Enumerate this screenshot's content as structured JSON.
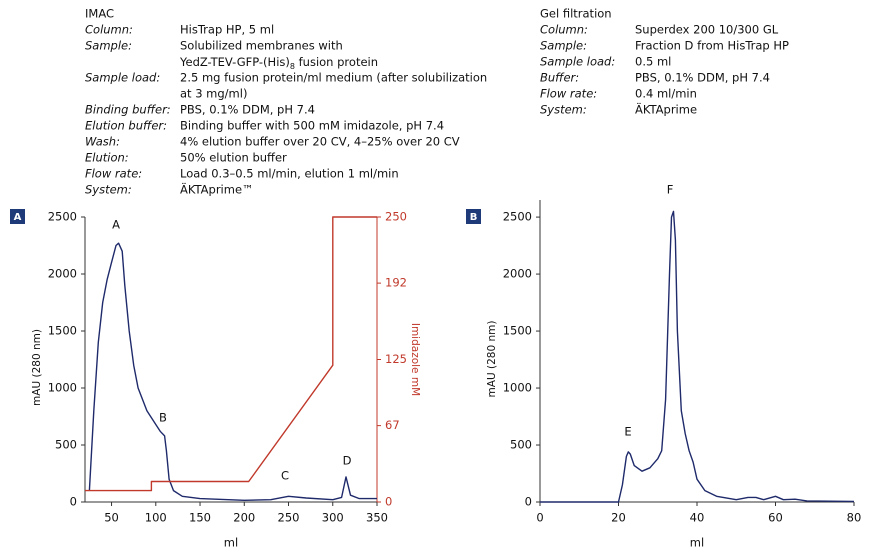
{
  "imac": {
    "title": "IMAC",
    "rows": [
      {
        "label": "Column:",
        "lines": [
          "HisTrap HP, 5 ml"
        ]
      },
      {
        "label": "Sample:",
        "lines": [
          "Solubilized membranes with",
          {
            "text": "YedZ-TEV-GFP-(His)",
            "sub": "8",
            "tail": " fusion protein"
          }
        ]
      },
      {
        "label": "Sample load:",
        "lines": [
          "2.5 mg fusion protein/ml medium (after solubilization",
          "at 3 mg/ml)"
        ]
      },
      {
        "label": "Binding buffer:",
        "lines": [
          "PBS, 0.1% DDM, pH 7.4"
        ]
      },
      {
        "label": "Elution buffer:",
        "lines": [
          "Binding buffer with 500 mM imidazole, pH 7.4"
        ]
      },
      {
        "label": "Wash:",
        "lines": [
          "4% elution buffer over 20 CV, 4–25% over 20 CV"
        ]
      },
      {
        "label": "Elution:",
        "lines": [
          "50% elution buffer"
        ]
      },
      {
        "label": "Flow rate:",
        "lines": [
          "Load 0.3–0.5 ml/min, elution 1 ml/min"
        ]
      },
      {
        "label": "System:",
        "lines": [
          "ÄKTAprime™"
        ]
      }
    ]
  },
  "gel_filtration": {
    "title": "Gel filtration",
    "rows": [
      {
        "label": "Column:",
        "lines": [
          "Superdex 200 10/300 GL"
        ]
      },
      {
        "label": "Sample:",
        "lines": [
          "Fraction D from HisTrap HP"
        ]
      },
      {
        "label": "Sample load:",
        "lines": [
          "0.5 ml"
        ]
      },
      {
        "label": "Buffer:",
        "lines": [
          "PBS, 0.1% DDM, pH 7.4"
        ]
      },
      {
        "label": "Flow rate:",
        "lines": [
          "0.4 ml/min"
        ]
      },
      {
        "label": "System:",
        "lines": [
          "ÄKTAprime"
        ]
      }
    ]
  },
  "chart_data": [
    {
      "type": "line",
      "panel": "A",
      "xlabel": "ml",
      "ylabel": "mAU (280 nm)",
      "y2label": "Imidazole mM",
      "xlim": [
        20,
        350
      ],
      "xticks": [
        50,
        100,
        150,
        200,
        250,
        300,
        350
      ],
      "ylim": [
        0,
        2500
      ],
      "yticks": [
        0,
        500,
        1000,
        1500,
        2000,
        2500
      ],
      "y2lim": [
        0,
        250
      ],
      "y2ticks": [
        0,
        67,
        125,
        192,
        250
      ],
      "y2color": "#c0392b",
      "annotations": [
        "A",
        "B",
        "C",
        "D"
      ],
      "series": [
        {
          "color": "#1f2a6b",
          "x": [
            25,
            30,
            35,
            40,
            45,
            50,
            55,
            58,
            62,
            65,
            70,
            75,
            80,
            90,
            100,
            105,
            110,
            112,
            115,
            120,
            130,
            150,
            200,
            230,
            250,
            270,
            300,
            310,
            315,
            320,
            330,
            350
          ],
          "values": [
            100,
            800,
            1400,
            1750,
            1950,
            2100,
            2250,
            2270,
            2200,
            1900,
            1500,
            1200,
            1000,
            800,
            680,
            620,
            580,
            450,
            200,
            100,
            50,
            30,
            15,
            20,
            50,
            35,
            20,
            40,
            220,
            60,
            30,
            30
          ]
        },
        {
          "color": "#c0392b",
          "axis": "y2",
          "x": [
            20,
            95,
            95,
            205,
            300,
            300,
            350
          ],
          "values": [
            10,
            10,
            18,
            18,
            120,
            250,
            250
          ]
        }
      ]
    },
    {
      "type": "line",
      "panel": "B",
      "xlabel": "ml",
      "ylabel": "mAU (280 nm)",
      "xlim": [
        0,
        80
      ],
      "xticks": [
        0,
        20,
        40,
        60,
        80
      ],
      "ylim": [
        0,
        2650
      ],
      "yticks": [
        0,
        500,
        1000,
        1500,
        2000,
        2500
      ],
      "annotations": [
        "E",
        "F"
      ],
      "series": [
        {
          "color": "#1f2a6b",
          "x": [
            0,
            20,
            21,
            22,
            22.5,
            23,
            24,
            26,
            28,
            30,
            31,
            32,
            33,
            33.5,
            34,
            34.5,
            35,
            36,
            37,
            38,
            39,
            40,
            42,
            45,
            50,
            53,
            55,
            57,
            60,
            62,
            65,
            68,
            80
          ],
          "values": [
            0,
            0,
            150,
            400,
            440,
            420,
            320,
            270,
            300,
            380,
            450,
            900,
            2000,
            2500,
            2550,
            2300,
            1500,
            800,
            600,
            450,
            350,
            200,
            100,
            50,
            20,
            40,
            40,
            20,
            50,
            20,
            25,
            10,
            5
          ]
        }
      ]
    }
  ]
}
